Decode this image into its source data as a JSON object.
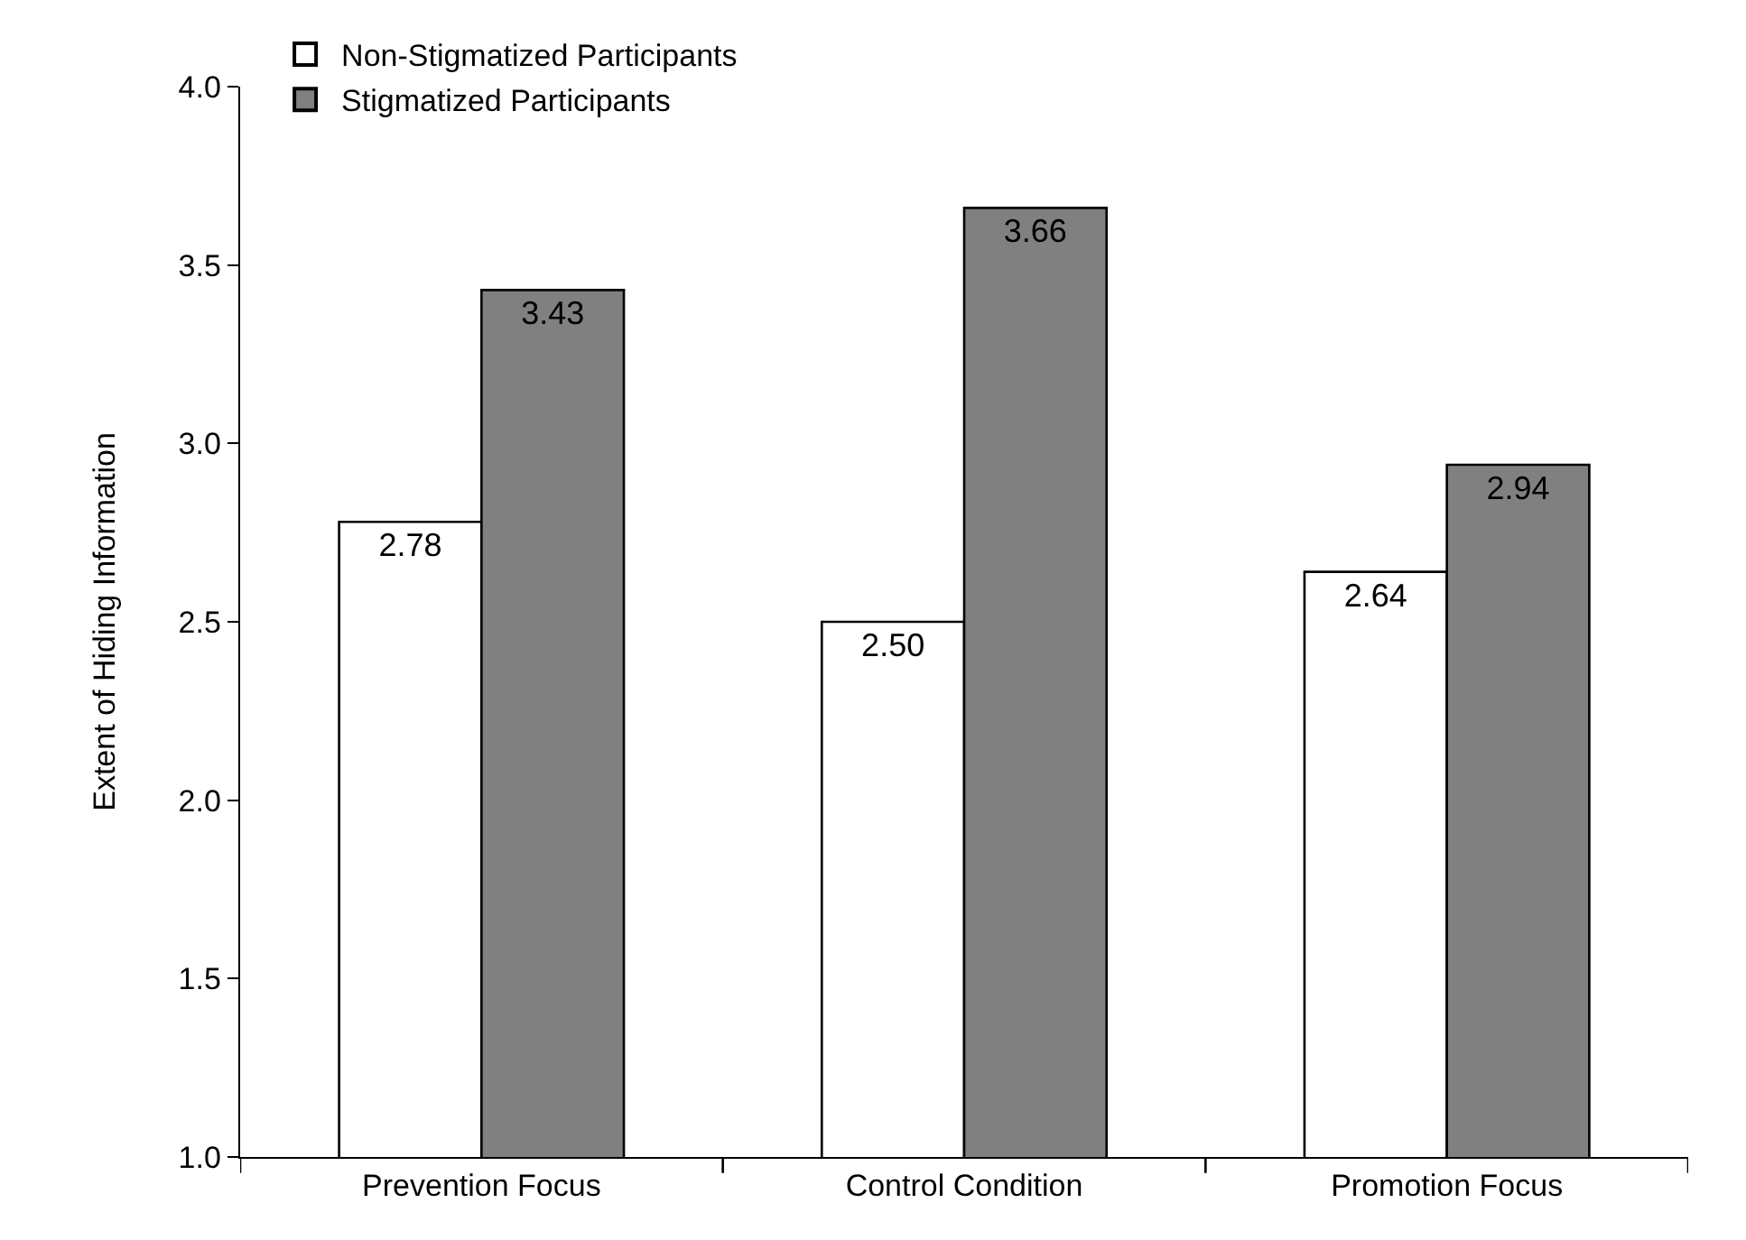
{
  "chart_data": {
    "type": "bar",
    "ylabel": "Extent of Hiding Information",
    "categories": [
      "Prevention Focus",
      "Control Condition",
      "Promotion Focus"
    ],
    "series": [
      {
        "name": "Non-Stigmatized Participants",
        "color": "#ffffff",
        "values": [
          2.78,
          2.5,
          2.64
        ],
        "value_labels": [
          "2.78",
          "2.50",
          "2.64"
        ]
      },
      {
        "name": "Stigmatized Participants",
        "color": "#808080",
        "values": [
          3.43,
          3.66,
          2.94
        ],
        "value_labels": [
          "3.43",
          "3.66",
          "2.94"
        ]
      }
    ],
    "ylim": [
      1.0,
      4.0
    ],
    "yticks": [
      {
        "value": 1.0,
        "label": "1.0"
      },
      {
        "value": 1.5,
        "label": "1.5"
      },
      {
        "value": 2.0,
        "label": "2.0"
      },
      {
        "value": 2.5,
        "label": "2.5"
      },
      {
        "value": 3.0,
        "label": "3.0"
      },
      {
        "value": 3.5,
        "label": "3.5"
      },
      {
        "value": 4.0,
        "label": "4.0"
      }
    ],
    "legend": "top left"
  }
}
